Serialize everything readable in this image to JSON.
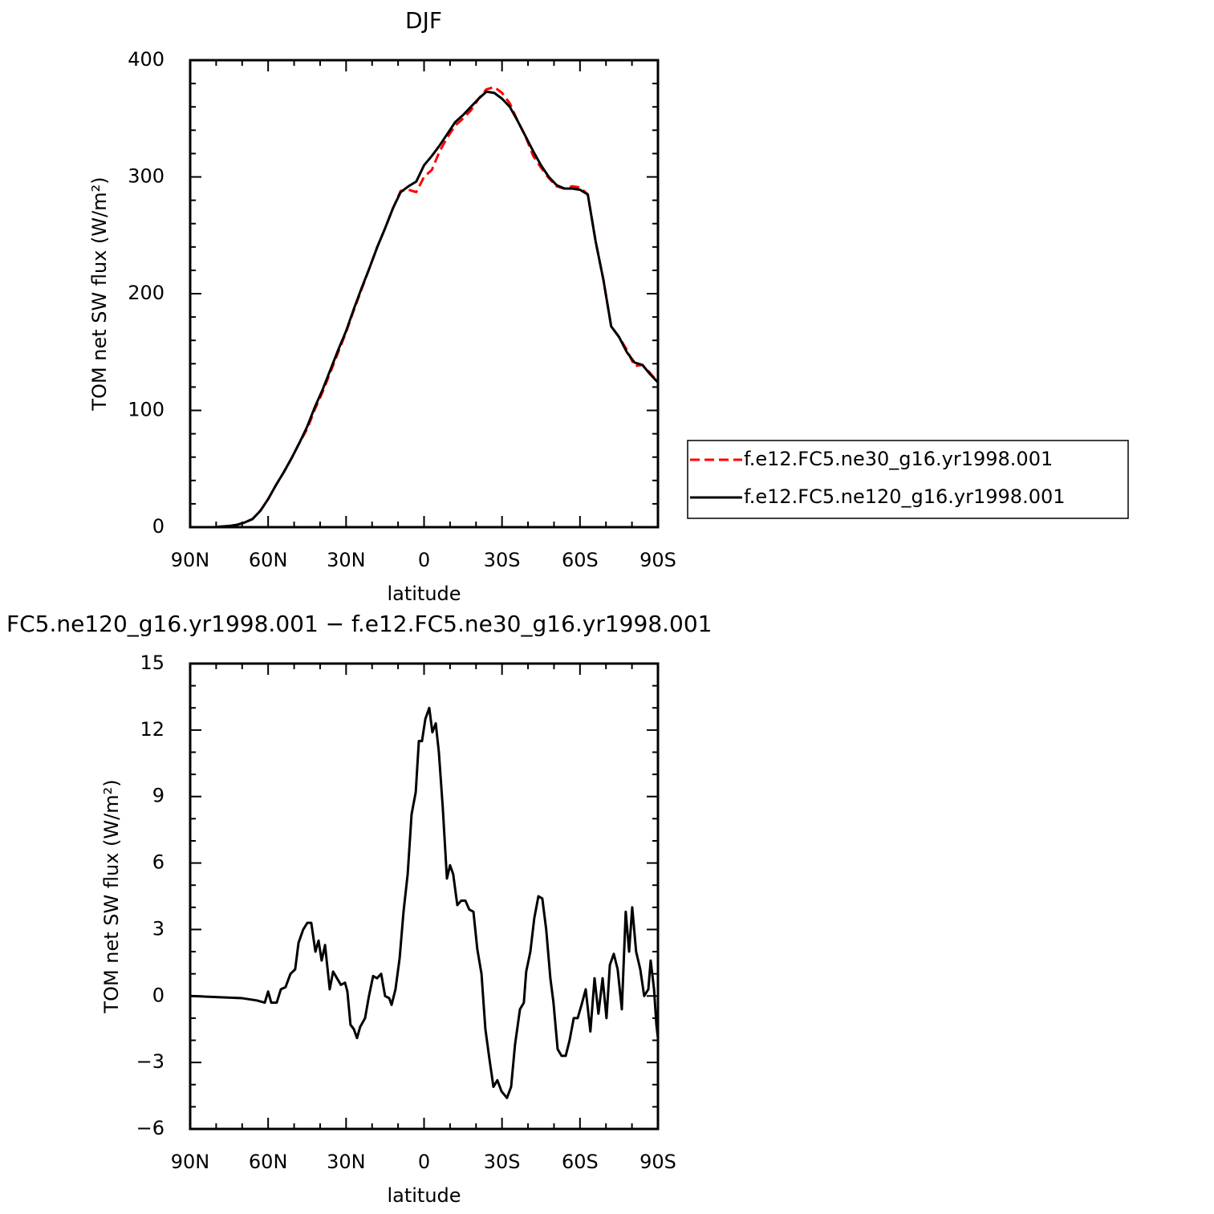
{
  "chart_data": [
    {
      "type": "line",
      "title": "DJF",
      "x_label": "latitude",
      "y_label": "TOM net SW flux (W/m²)",
      "x": [
        90,
        87,
        84,
        81,
        78,
        75,
        72,
        69,
        66,
        63,
        60,
        57,
        54,
        51,
        48,
        45,
        42,
        39,
        36,
        33,
        30,
        27,
        24,
        21,
        18,
        15,
        12,
        9,
        6,
        3,
        0,
        -3,
        -6,
        -9,
        -12,
        -15,
        -18,
        -21,
        -24,
        -27,
        -30,
        -33,
        -36,
        -39,
        -42,
        -45,
        -48,
        -51,
        -54,
        -57,
        -60,
        -63,
        -66,
        -69,
        -72,
        -75,
        -78,
        -81,
        -84,
        -87,
        -90
      ],
      "series": [
        {
          "name": "f.e12.FC5.ne30_g16.yr1998.001",
          "color": "#ff0000",
          "linestyle": "dashed",
          "values": [
            0,
            0,
            0,
            0,
            0.5,
            1,
            2,
            4,
            7,
            14,
            24,
            36,
            47,
            59,
            72,
            84,
            101,
            116,
            133,
            150,
            167,
            186,
            204,
            222,
            240,
            256,
            273,
            288,
            289,
            287,
            300,
            306,
            322,
            334,
            344,
            350,
            357,
            367,
            375,
            377,
            372,
            363,
            348,
            335,
            318,
            308,
            299,
            292,
            290,
            292,
            291,
            285,
            245,
            212,
            172,
            163,
            152,
            138,
            139,
            132,
            124
          ]
        },
        {
          "name": "f.e12.FC5.ne120_g16.yr1998.001",
          "color": "#000000",
          "linestyle": "solid",
          "values": [
            0,
            0,
            0,
            0,
            0.5,
            1,
            2,
            4,
            7,
            14,
            24,
            36,
            47,
            59,
            72,
            86,
            103,
            118,
            135,
            152,
            168,
            187,
            205,
            222,
            240,
            256,
            273,
            287,
            292,
            296,
            310,
            318,
            327,
            337,
            347,
            353,
            360,
            367,
            373,
            372,
            367,
            360,
            348,
            335,
            322,
            310,
            300,
            293,
            290,
            290,
            289,
            285,
            245,
            212,
            172,
            163,
            150,
            141,
            139,
            131,
            124
          ]
        }
      ],
      "xlim": [
        90,
        -90
      ],
      "xticks": [
        {
          "value": 90,
          "label": "90N"
        },
        {
          "value": 60,
          "label": "60N"
        },
        {
          "value": 30,
          "label": "30N"
        },
        0,
        {
          "value": -30,
          "label": "30S"
        },
        {
          "value": -60,
          "label": "60S"
        },
        {
          "value": -90,
          "label": "90S"
        }
      ],
      "ylim": [
        0,
        400
      ],
      "yticks": [
        0,
        100,
        200,
        300,
        400
      ],
      "xminor": 3,
      "yminor": 5,
      "legend": "right"
    },
    {
      "type": "line",
      "title": "FC5.ne120_g16.yr1998.001 − f.e12.FC5.ne30_g16.yr1998.001",
      "x_label": "latitude",
      "y_label": "TOM net SW flux (W/m²)",
      "x": [
        90,
        70,
        64.4,
        61.3,
        60,
        58.8,
        56.7,
        55.1,
        53.3,
        51.4,
        49.6,
        48.3,
        46.5,
        44.9,
        43.4,
        41.8,
        40.6,
        39.4,
        38.1,
        36.3,
        35,
        33.5,
        32,
        30.4,
        29.5,
        28.3,
        27,
        25.8,
        24.6,
        22.7,
        21.2,
        19.6,
        18.1,
        16.5,
        15,
        13.4,
        12.5,
        11,
        9.4,
        7.9,
        6.3,
        4.8,
        3.2,
        2,
        0.8,
        -0.5,
        -2,
        -3.2,
        -4.5,
        -5.7,
        -7.2,
        -8.8,
        -10,
        -11.2,
        -12.8,
        -14.3,
        -15.9,
        -17.4,
        -19,
        -20.5,
        -22.1,
        -23.6,
        -25.1,
        -26.7,
        -28.2,
        -29.8,
        -31.9,
        -33.5,
        -35,
        -36.9,
        -38.4,
        -39.3,
        -40.9,
        -42.4,
        -44,
        -45.5,
        -47,
        -48.6,
        -49.8,
        -51.4,
        -52.9,
        -54.5,
        -56,
        -57.6,
        -59.1,
        -60.6,
        -62.2,
        -64,
        -65.6,
        -67.1,
        -68.7,
        -70.2,
        -71.5,
        -73,
        -74.5,
        -76.1,
        -77.6,
        -78.9,
        -80.1,
        -81.6,
        -83.2,
        -84.7,
        -86.3,
        -87.2,
        -88.5,
        -89.4,
        -90
      ],
      "series": [
        {
          "color": "#000000",
          "linestyle": "solid",
          "values": [
            0,
            -0.1,
            -0.2,
            -0.3,
            0.2,
            -0.3,
            -0.3,
            0.3,
            0.4,
            1,
            1.2,
            2.4,
            3,
            3.3,
            3.3,
            2,
            2.5,
            1.6,
            2.3,
            0.3,
            1.1,
            0.8,
            0.5,
            0.6,
            0.2,
            -1.3,
            -1.5,
            -1.9,
            -1.4,
            -1,
            0,
            0.9,
            0.8,
            1,
            0,
            -0.1,
            -0.4,
            0.3,
            1.7,
            3.8,
            5.5,
            8.2,
            9.2,
            11.5,
            11.5,
            12.5,
            13,
            11.9,
            12.3,
            11,
            8.5,
            5.3,
            5.9,
            5.5,
            4.1,
            4.3,
            4.3,
            3.9,
            3.8,
            2.1,
            1,
            -1.5,
            -2.8,
            -4.1,
            -3.8,
            -4.3,
            -4.6,
            -4.1,
            -2.2,
            -0.6,
            -0.3,
            1.1,
            2,
            3.5,
            4.5,
            4.4,
            3,
            0.8,
            -0.3,
            -2.4,
            -2.7,
            -2.7,
            -2,
            -1,
            -1,
            -0.4,
            0.3,
            -1.6,
            0.8,
            -0.8,
            0.8,
            -1,
            1.4,
            1.9,
            1.2,
            -0.6,
            3.8,
            2,
            4,
            2,
            1.2,
            0,
            0.3,
            1.6,
            0.3,
            -1.3,
            -1.9
          ]
        }
      ],
      "xlim": [
        90,
        -90
      ],
      "xticks": [
        {
          "value": 90,
          "label": "90N"
        },
        {
          "value": 60,
          "label": "60N"
        },
        {
          "value": 30,
          "label": "30N"
        },
        0,
        {
          "value": -30,
          "label": "30S"
        },
        {
          "value": -60,
          "label": "60S"
        },
        {
          "value": -90,
          "label": "90S"
        }
      ],
      "ylim": [
        -6,
        15
      ],
      "yticks": [
        {
          "value": -6,
          "label": "−6"
        },
        {
          "value": -3,
          "label": "−3"
        },
        0,
        3,
        6,
        9,
        12,
        15
      ],
      "xminor": 3,
      "yminor": 3
    }
  ]
}
